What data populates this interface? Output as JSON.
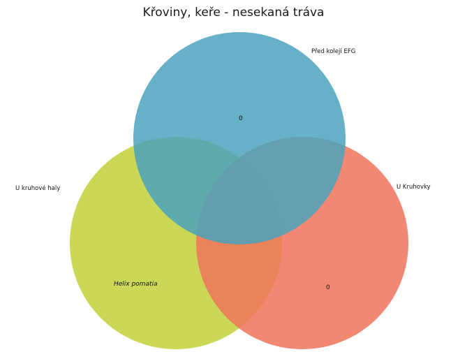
{
  "title": "Křoviny, keře - nesekaná tráva",
  "sets": [
    {
      "name": "Před kolejí EFG",
      "color": "#4ba3bd",
      "value": "0"
    },
    {
      "name": "U kruhové haly",
      "color": "#c2d13a",
      "value": "Helix pomatia"
    },
    {
      "name": "U Kruhovky",
      "color": "#f0735a",
      "value": "0"
    }
  ]
}
